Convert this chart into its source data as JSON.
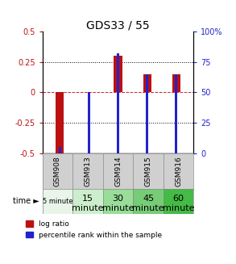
{
  "title": "GDS33 / 55",
  "samples": [
    "GSM908",
    "GSM913",
    "GSM914",
    "GSM915",
    "GSM916"
  ],
  "time_labels_top": [
    "5 minute",
    "15",
    "30",
    "45",
    "60"
  ],
  "time_labels_bot": [
    "",
    "minute",
    "minute",
    "minute",
    "minute"
  ],
  "time_colors": [
    "#e8f5e8",
    "#cceecc",
    "#99dd99",
    "#77cc77",
    "#44bb44"
  ],
  "log_ratio": [
    -0.5,
    0.0,
    0.3,
    0.15,
    0.15
  ],
  "percentile_rank": [
    5,
    50,
    82,
    65,
    65
  ],
  "ylim_left": [
    -0.5,
    0.5
  ],
  "ylim_right": [
    0,
    100
  ],
  "red_color": "#bb1111",
  "blue_color": "#2222cc",
  "bg_color_sample": "#d0d0d0",
  "legend_red": "log ratio",
  "legend_blue": "percentile rank within the sample"
}
